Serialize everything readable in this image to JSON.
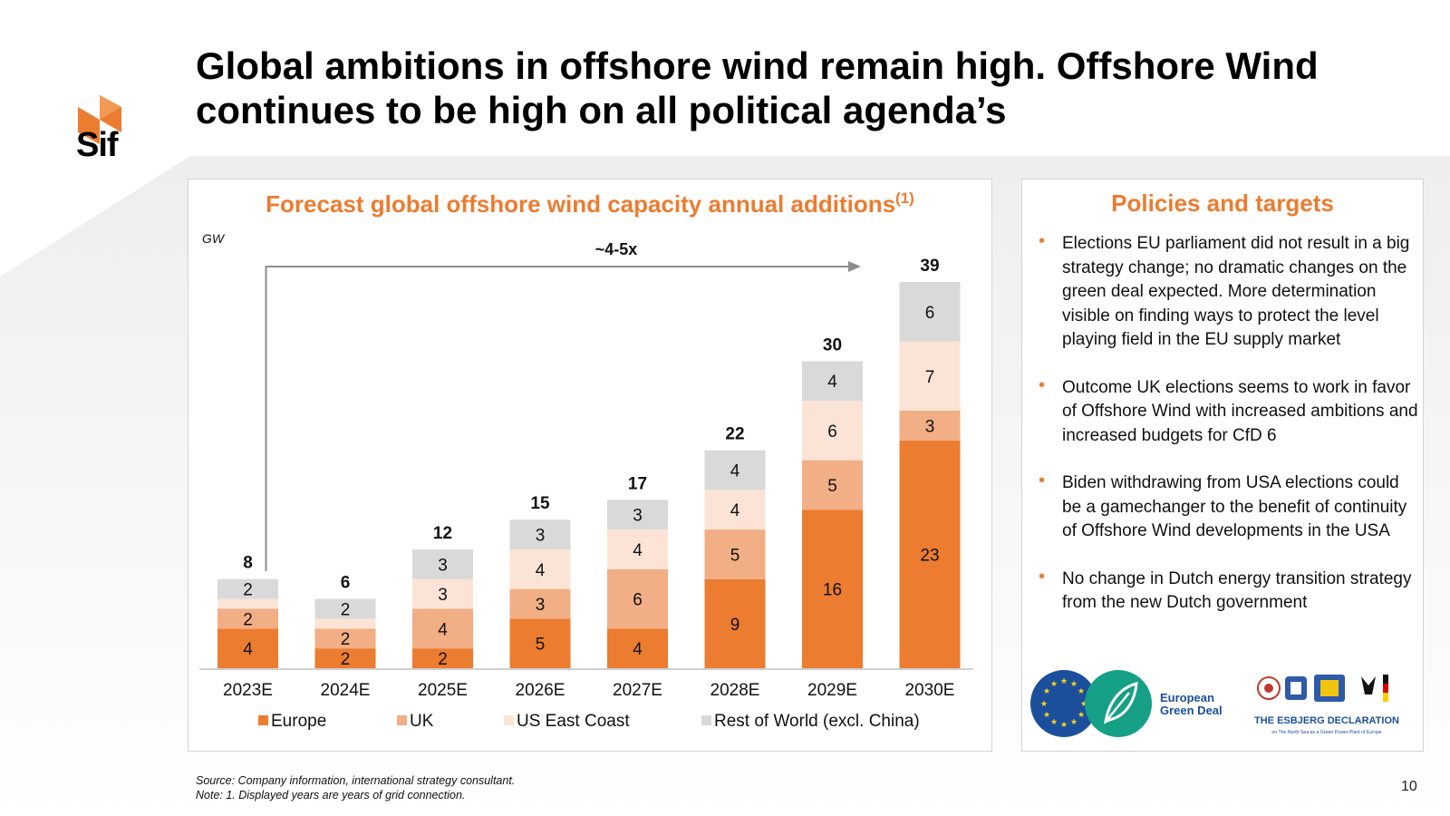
{
  "slide": {
    "title": "Global ambitions in offshore wind remain high. Offshore Wind continues to be high on all political agenda’s",
    "logo_text": "Sif",
    "page_number": "10"
  },
  "colors": {
    "accent": "#ec7c30",
    "europe": "#ec7c30",
    "uk": "#f2ae84",
    "us_east_coast": "#fbe4d5",
    "rest_of_world": "#d9d9d9",
    "eu_blue": "#1b4f9c",
    "green_deal": "#16a085"
  },
  "chart_data": {
    "type": "bar",
    "stacked": true,
    "title": "Forecast global offshore wind capacity annual additions",
    "title_superscript": "(1)",
    "ylabel": "GW",
    "ylim": [
      0,
      39
    ],
    "categories": [
      "2023E",
      "2024E",
      "2025E",
      "2026E",
      "2027E",
      "2028E",
      "2029E",
      "2030E"
    ],
    "series": [
      {
        "name": "Europe",
        "values": [
          4,
          2,
          2,
          5,
          4,
          9,
          16,
          23
        ]
      },
      {
        "name": "UK",
        "values": [
          2,
          2,
          4,
          3,
          6,
          5,
          5,
          3
        ]
      },
      {
        "name": "US East Coast",
        "values": [
          1,
          1,
          3,
          4,
          4,
          4,
          6,
          7
        ]
      },
      {
        "name": "Rest of World (excl. China)",
        "values": [
          2,
          2,
          3,
          3,
          3,
          4,
          4,
          6
        ]
      }
    ],
    "segment_labels": [
      [
        "4",
        "2",
        "2",
        "5",
        "4",
        "9",
        "16",
        "23"
      ],
      [
        "2",
        "2",
        "4",
        "3",
        "6",
        "5",
        "5",
        "3"
      ],
      [
        "",
        "",
        "3",
        "4",
        "4",
        "4",
        "6",
        "7"
      ],
      [
        "2",
        "2",
        "3",
        "3",
        "3",
        "4",
        "4",
        "6"
      ]
    ],
    "totals": [
      "8",
      "6",
      "12",
      "15",
      "17",
      "22",
      "30",
      "39"
    ],
    "annotation": "~4-5x",
    "legend_position": "bottom"
  },
  "policies": {
    "title": "Policies and targets",
    "items": [
      "Elections EU parliament did not result in a big strategy change; no dramatic changes on the green deal expected. More determination visible on finding ways to protect the level playing field in the EU supply market",
      "Outcome UK elections seems to work in favor of Offshore Wind with increased ambitions and increased budgets for CfD 6",
      "Biden withdrawing from USA elections could be a gamechanger to the benefit of continuity of Offshore Wind developments in the USA",
      "No change in Dutch energy transition strategy from the new Dutch government"
    ],
    "logo_green_deal_line1": "European",
    "logo_green_deal_line2": "Green Deal",
    "logo_esbjerg_title": "THE ESBJERG DECLARATION",
    "logo_esbjerg_subtitle": "on The North Sea as a Green Power Plant of Europe"
  },
  "footnotes": {
    "source": "Source: Company information, international strategy consultant.",
    "note": "Note: 1. Displayed years are years of grid connection."
  }
}
